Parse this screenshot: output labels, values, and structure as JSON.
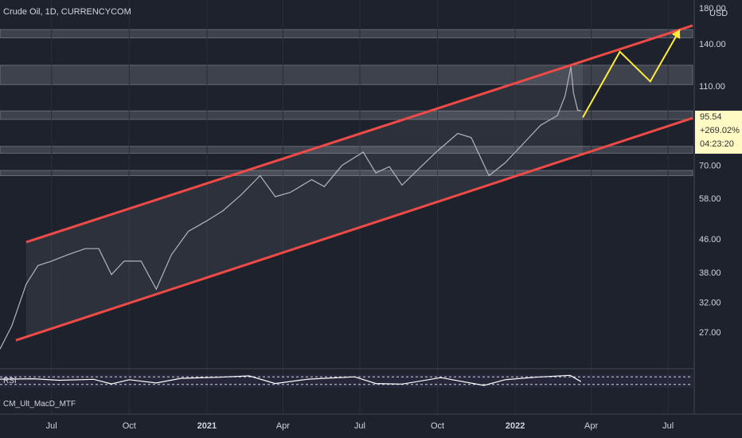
{
  "header": {
    "title": "Crude Oil, 1D, CURRENCYCOM",
    "unit": "USD"
  },
  "price_label": {
    "last": "95.54",
    "change": "+269.02%",
    "countdown": "04:23:20"
  },
  "indicators": {
    "rsi_label": "RSI",
    "macd_label": "CM_Ult_MacD_MTF"
  },
  "colors": {
    "background": "#1e222d",
    "channel": "#f04a47",
    "projection": "#ffeb3b",
    "rsi_line": "#ffffff",
    "zone": "#9598a1"
  },
  "chart_data": {
    "type": "line",
    "title": "Crude Oil, 1D, CURRENCYCOM",
    "y_scale": "log",
    "ylim": [
      22,
      180
    ],
    "y_ticks": [
      180.0,
      140.0,
      110.0,
      70.0,
      58.0,
      46.0,
      38.0,
      32.0,
      27.0
    ],
    "y_tick_labels": [
      "180.00",
      "140.00",
      "110.00",
      "70.00",
      "58.00",
      "46.00",
      "38.00",
      "32.00",
      "27.00"
    ],
    "x_range": [
      "2020-05-01",
      "2022-08-01"
    ],
    "x_ticks": [
      "2020-07-01",
      "2020-10-01",
      "2021-01-01",
      "2021-04-01",
      "2021-07-01",
      "2021-10-01",
      "2022-01-01",
      "2022-04-01",
      "2022-07-01"
    ],
    "x_tick_labels": [
      "Jul",
      "Oct",
      "2021",
      "Apr",
      "Jul",
      "Oct",
      "2022",
      "Apr",
      "Jul"
    ],
    "series": [
      {
        "values": [
          [
            "2020-05-01",
            24.5
          ],
          [
            "2020-05-15",
            28
          ],
          [
            "2020-06-01",
            35.5
          ],
          [
            "2020-06-15",
            39.5
          ],
          [
            "2020-07-01",
            40.5
          ],
          [
            "2020-07-20",
            42
          ],
          [
            "2020-08-10",
            43.5
          ],
          [
            "2020-08-26",
            43.5
          ],
          [
            "2020-09-10",
            37.5
          ],
          [
            "2020-09-25",
            40.5
          ],
          [
            "2020-10-15",
            40.5
          ],
          [
            "2020-11-02",
            34.5
          ],
          [
            "2020-11-20",
            42
          ],
          [
            "2020-12-10",
            48
          ],
          [
            "2021-01-01",
            51
          ],
          [
            "2021-01-20",
            54
          ],
          [
            "2021-02-10",
            59
          ],
          [
            "2021-03-05",
            66
          ],
          [
            "2021-03-23",
            58.5
          ],
          [
            "2021-04-10",
            60
          ],
          [
            "2021-05-05",
            64.5
          ],
          [
            "2021-05-20",
            62
          ],
          [
            "2021-06-10",
            70
          ],
          [
            "2021-07-05",
            75.5
          ],
          [
            "2021-07-20",
            67
          ],
          [
            "2021-08-05",
            69.5
          ],
          [
            "2021-08-20",
            62.5
          ],
          [
            "2021-09-10",
            69
          ],
          [
            "2021-10-01",
            76
          ],
          [
            "2021-10-25",
            84
          ],
          [
            "2021-11-10",
            82
          ],
          [
            "2021-12-01",
            66
          ],
          [
            "2021-12-20",
            71
          ],
          [
            "2022-01-10",
            79
          ],
          [
            "2022-01-31",
            88
          ],
          [
            "2022-02-20",
            93
          ],
          [
            "2022-03-01",
            104
          ],
          [
            "2022-03-08",
            123
          ],
          [
            "2022-03-11",
            106
          ],
          [
            "2022-03-16",
            96
          ],
          [
            "2022-03-20",
            95.54
          ]
        ]
      }
    ],
    "channel_upper": [
      [
        "2020-05-01",
        43
      ],
      [
        "2022-08-01",
        156
      ]
    ],
    "channel_lower": [
      [
        "2020-05-01",
        25
      ],
      [
        "2022-08-01",
        92
      ]
    ],
    "zones": [
      [
        145,
        152
      ],
      [
        111,
        124
      ],
      [
        91,
        95.5
      ],
      [
        75,
        78
      ],
      [
        66,
        68
      ]
    ],
    "projection": [
      [
        "2022-03-22",
        92
      ],
      [
        "2022-05-05",
        134
      ],
      [
        "2022-06-10",
        113
      ],
      [
        "2022-07-15",
        152
      ]
    ],
    "rsi": {
      "ylim": [
        0,
        100
      ],
      "levels": [
        70,
        30
      ],
      "values": [
        [
          "2020-05-01",
          58
        ],
        [
          "2020-06-10",
          60
        ],
        [
          "2020-07-10",
          52
        ],
        [
          "2020-08-20",
          57
        ],
        [
          "2020-09-10",
          33
        ],
        [
          "2020-10-01",
          55
        ],
        [
          "2020-11-02",
          38
        ],
        [
          "2020-12-01",
          62
        ],
        [
          "2021-01-15",
          68
        ],
        [
          "2021-02-20",
          75
        ],
        [
          "2021-03-23",
          35
        ],
        [
          "2021-05-01",
          58
        ],
        [
          "2021-06-25",
          70
        ],
        [
          "2021-07-20",
          35
        ],
        [
          "2021-08-20",
          32
        ],
        [
          "2021-10-05",
          66
        ],
        [
          "2021-11-25",
          25
        ],
        [
          "2021-12-20",
          55
        ],
        [
          "2022-01-25",
          68
        ],
        [
          "2022-03-07",
          78
        ],
        [
          "2022-03-20",
          45
        ]
      ]
    }
  }
}
